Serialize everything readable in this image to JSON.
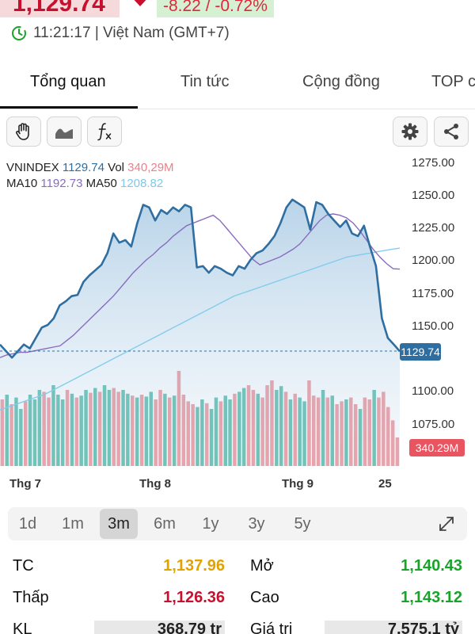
{
  "header": {
    "price": "1,129.74",
    "change": "-8.22 / -0.72%",
    "time_text": "11:21:17 | Việt Nam (GMT+7)",
    "down_color": "#c8102e",
    "clock_icon": "clock-icon"
  },
  "tabs": [
    {
      "label": "Tổng quan",
      "active": true
    },
    {
      "label": "Tin tức",
      "active": false
    },
    {
      "label": "Cộng đồng",
      "active": false
    },
    {
      "label": "TOP c",
      "active": false
    }
  ],
  "toolbar": {
    "left": [
      "hand-icon",
      "area-chart-icon",
      "function-icon"
    ],
    "right": [
      "gear-icon",
      "share-icon"
    ]
  },
  "legend": {
    "symbol": "VNINDEX",
    "last": "1129.74",
    "vol_label": "Vol",
    "vol": "340,29M",
    "ma10_label": "MA10",
    "ma10": "1192.73",
    "ma50_label": "MA50",
    "ma50": "1208.82",
    "colors": {
      "price": "#2f6ea0",
      "vol": "#e8828a",
      "ma10": "#8a6bbf",
      "ma50": "#7ec8ea"
    }
  },
  "chart_data": {
    "type": "line",
    "y_ticks": [
      "1275.00",
      "1250.00",
      "1225.00",
      "1200.00",
      "1175.00",
      "1150.00",
      "1100.00",
      "1075.00"
    ],
    "ylim": [
      1050,
      1280
    ],
    "x_labels": [
      "Thg 7",
      "Thg 8",
      "Thg 9",
      "25"
    ],
    "last_price_label": "1129.74",
    "last_volume_label": "340.29M",
    "price_color": "#2f6ea0",
    "up_color": "#4db6a4",
    "down_color": "#ec8c94",
    "series": [
      {
        "name": "VNINDEX",
        "values": [
          1135,
          1130,
          1125,
          1130,
          1135,
          1132,
          1140,
          1148,
          1150,
          1155,
          1165,
          1168,
          1172,
          1173,
          1183,
          1188,
          1192,
          1196,
          1205,
          1220,
          1213,
          1215,
          1210,
          1228,
          1242,
          1240,
          1230,
          1238,
          1235,
          1240,
          1237,
          1242,
          1240,
          1194,
          1195,
          1190,
          1195,
          1193,
          1190,
          1188,
          1195,
          1193,
          1200,
          1205,
          1207,
          1212,
          1218,
          1228,
          1240,
          1246,
          1243,
          1240,
          1223,
          1244,
          1242,
          1235,
          1230,
          1225,
          1230,
          1220,
          1218,
          1226,
          1210,
          1195,
          1155,
          1140,
          1135,
          1129.74
        ]
      },
      {
        "name": "MA10",
        "values": [
          1125,
          1127,
          1128,
          1129,
          1129,
          1130,
          1131,
          1132,
          1133,
          1134,
          1138,
          1142,
          1147,
          1152,
          1157,
          1162,
          1167,
          1172,
          1178,
          1184,
          1190,
          1195,
          1200,
          1204,
          1209,
          1213,
          1218,
          1222,
          1226,
          1228,
          1230,
          1232,
          1234,
          1230,
          1224,
          1218,
          1212,
          1206,
          1200,
          1196,
          1198,
          1200,
          1202,
          1205,
          1208,
          1212,
          1218,
          1224,
          1230,
          1234,
          1235,
          1234,
          1232,
          1228,
          1222,
          1215,
          1208,
          1202,
          1197,
          1193,
          1192.73
        ]
      },
      {
        "name": "MA50",
        "values": [
          1085,
          1087,
          1089,
          1091,
          1093,
          1095,
          1097,
          1100,
          1103,
          1106,
          1109,
          1112,
          1115,
          1118,
          1121,
          1124,
          1127,
          1130,
          1133,
          1136,
          1139,
          1142,
          1145,
          1148,
          1151,
          1154,
          1157,
          1160,
          1163,
          1166,
          1169,
          1172,
          1174,
          1176,
          1178,
          1180,
          1182,
          1184,
          1186,
          1188,
          1190,
          1192,
          1194,
          1196,
          1198,
          1200,
          1202,
          1203,
          1204,
          1205,
          1206,
          1207,
          1208,
          1208.82
        ]
      }
    ],
    "volume": {
      "name": "Vol",
      "values": [
        0.7,
        0.75,
        0.65,
        0.72,
        0.6,
        0.68,
        0.75,
        0.7,
        0.8,
        0.78,
        0.72,
        0.85,
        0.75,
        0.7,
        0.8,
        0.76,
        0.72,
        0.74,
        0.8,
        0.77,
        0.82,
        0.78,
        0.85,
        0.8,
        0.82,
        0.78,
        0.8,
        0.76,
        0.74,
        0.72,
        0.75,
        0.73,
        0.78,
        0.7,
        0.8,
        0.76,
        0.72,
        0.74,
        1.0,
        0.75,
        0.68,
        0.65,
        0.62,
        0.7,
        0.66,
        0.6,
        0.72,
        0.68,
        0.74,
        0.7,
        0.76,
        0.78,
        0.82,
        0.85,
        0.8,
        0.76,
        0.72,
        0.85,
        0.9,
        0.8,
        0.84,
        0.78,
        0.7,
        0.76,
        0.72,
        0.68,
        0.9,
        0.74,
        0.72,
        0.8,
        0.72,
        0.74,
        0.65,
        0.68,
        0.7,
        0.72,
        0.65,
        0.6,
        0.72,
        0.7,
        0.8,
        0.72,
        0.78,
        0.62,
        0.48,
        0.3
      ],
      "up": [
        0,
        1,
        0,
        1,
        1,
        0,
        1,
        1,
        1,
        0,
        0,
        1,
        1,
        1,
        0,
        1,
        0,
        1,
        1,
        0,
        1,
        0,
        1,
        1,
        0,
        0,
        1,
        1,
        0,
        1,
        0,
        1,
        1,
        0,
        0,
        1,
        0,
        1,
        0,
        0,
        0,
        0,
        1,
        1,
        0,
        1,
        1,
        0,
        1,
        1,
        0,
        1,
        1,
        0,
        0,
        1,
        0,
        0,
        0,
        1,
        1,
        0,
        1,
        0,
        1,
        1,
        0,
        0,
        0,
        1,
        0,
        1,
        0,
        0,
        1,
        0,
        0,
        1,
        0,
        0,
        1,
        0,
        0,
        0,
        0,
        0
      ]
    }
  },
  "range": {
    "options": [
      "1d",
      "1m",
      "3m",
      "6m",
      "1y",
      "3y",
      "5y"
    ],
    "active": "3m",
    "expand_icon": "expand-icon"
  },
  "stats": {
    "left": [
      {
        "label": "TC",
        "value": "1,137.96",
        "color": "#e2a300"
      },
      {
        "label": "Thấp",
        "value": "1,126.36",
        "color": "#c8102e"
      },
      {
        "label": "KL",
        "value": "368.79 tr",
        "color": "#222222"
      }
    ],
    "right": [
      {
        "label": "Mở",
        "value": "1,140.43",
        "color": "#1aa32a"
      },
      {
        "label": "Cao",
        "value": "1,143.12",
        "color": "#1aa32a"
      },
      {
        "label": "Giá trị",
        "value": "7,575.1 tỷ",
        "color": "#222222"
      }
    ]
  }
}
